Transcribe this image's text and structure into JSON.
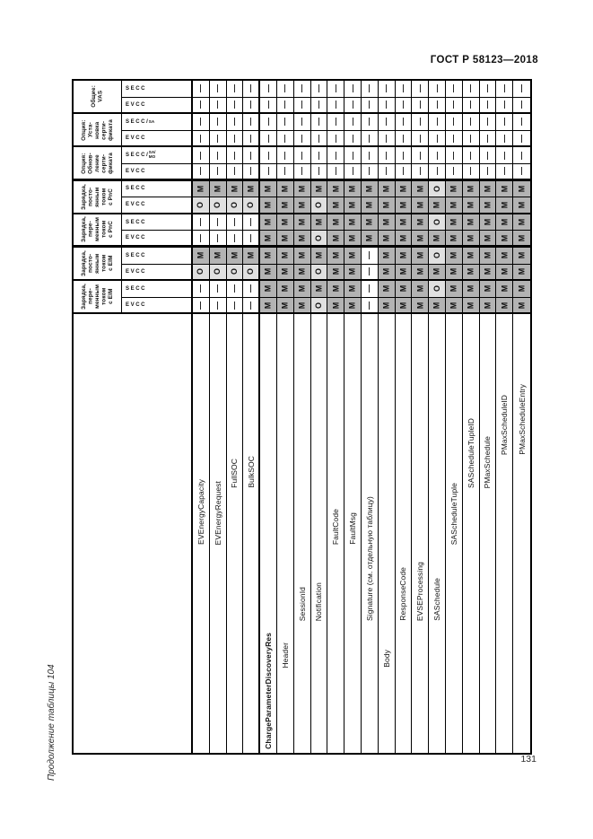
{
  "page": {
    "doc_ref": "ГОСТ Р 58123—2018",
    "side_caption": "Продолжение таблицы 104",
    "page_number": "131"
  },
  "table": {
    "legend": {
      "mandatory": "М",
      "optional": "О",
      "not_applicable": "—"
    },
    "colors": {
      "mandatory_bg": "#b3b3b3",
      "optional_bg": "#e0e0e0",
      "na_bg": "#ffffff",
      "border": "#000000"
    },
    "column_groups": [
      {
        "label": "Общие:\nVAS",
        "subs": [
          "SECC",
          "EVCC"
        ]
      },
      {
        "label": "Опция:\nУста-\nновка\nсерти-\nфиката",
        "subs": [
          "SECC/SA",
          "EVCC"
        ]
      },
      {
        "label": "Опция:\nОбнов-\nление\nсерти-\nфиката",
        "subs": [
          "SECC/SA/МО",
          "EVCC"
        ]
      },
      {
        "label": "Зарядка,\nпосто-\nянным\nтоком\nс PnC",
        "subs": [
          "SECC",
          "EVCC"
        ]
      },
      {
        "label": "Зарядка,\nпере-\nменным\nтоком\nс PnC",
        "subs": [
          "SECC",
          "EVCC"
        ]
      },
      {
        "label": "Зарядка,\nпосто-\nянным\nтоком\nс EIM",
        "subs": [
          "SECC",
          "EVCC"
        ]
      },
      {
        "label": "Зарядка,\nпере-\nменным\nтоком\nс EIM",
        "subs": [
          "SECC",
          "EVCC"
        ]
      }
    ],
    "rows": [
      {
        "name": "EVEnergyCapacity",
        "indent": 3,
        "bold": false
      },
      {
        "name": "EVEnergyRequest",
        "indent": 3,
        "bold": false
      },
      {
        "name": "FullSOC",
        "indent": 4,
        "bold": false
      },
      {
        "name": "BulkSOC",
        "indent": 4,
        "bold": false
      },
      {
        "name": "ChargeParameterDiscoveryRes",
        "indent": 0,
        "bold": true,
        "thick_before": true
      },
      {
        "name": "Header",
        "indent": 1,
        "bold": false
      },
      {
        "name": "SessionId",
        "indent": 2,
        "bold": false
      },
      {
        "name": "Notification",
        "indent": 2,
        "bold": false
      },
      {
        "name": "FaultCode",
        "indent": 3,
        "bold": false
      },
      {
        "name": "FaultMsg",
        "indent": 3,
        "bold": false
      },
      {
        "name": "Signature (см. отдельную таблицу)",
        "indent": 2,
        "bold": false
      },
      {
        "name": "Body",
        "indent": 1,
        "bold": false
      },
      {
        "name": "ResponseCode",
        "indent": 2,
        "bold": false
      },
      {
        "name": "EVSEProcessing",
        "indent": 2,
        "bold": false
      },
      {
        "name": "SASchedule",
        "indent": 2,
        "bold": false
      },
      {
        "name": "SAScheduleTuple",
        "indent": 3,
        "bold": false
      },
      {
        "name": "SAScheduleTupleID",
        "indent": 4,
        "bold": false
      },
      {
        "name": "PMaxSchedule",
        "indent": 4,
        "bold": false
      },
      {
        "name": "PMaxScheduleID",
        "indent": 5,
        "bold": false
      },
      {
        "name": "PMaxScheduleEntry",
        "indent": 5,
        "bold": false
      }
    ],
    "values": [
      [
        "—",
        "—",
        "—",
        "—",
        "—",
        "—",
        "—",
        "—",
        "—",
        "—",
        "—",
        "—",
        "—",
        "—",
        "—",
        "—",
        "—",
        "—",
        "—",
        "—"
      ],
      [
        "—",
        "—",
        "—",
        "—",
        "—",
        "—",
        "—",
        "—",
        "—",
        "—",
        "—",
        "—",
        "—",
        "—",
        "—",
        "—",
        "—",
        "—",
        "—",
        "—"
      ],
      [
        "—",
        "—",
        "—",
        "—",
        "—",
        "—",
        "—",
        "—",
        "—",
        "—",
        "—",
        "—",
        "—",
        "—",
        "—",
        "—",
        "—",
        "—",
        "—",
        "—"
      ],
      [
        "—",
        "—",
        "—",
        "—",
        "—",
        "—",
        "—",
        "—",
        "—",
        "—",
        "—",
        "—",
        "—",
        "—",
        "—",
        "—",
        "—",
        "—",
        "—",
        "—"
      ],
      [
        "—",
        "—",
        "—",
        "—",
        "—",
        "—",
        "—",
        "—",
        "—",
        "—",
        "—",
        "—",
        "—",
        "—",
        "—",
        "—",
        "—",
        "—",
        "—",
        "—"
      ],
      [
        "—",
        "—",
        "—",
        "—",
        "—",
        "—",
        "—",
        "—",
        "—",
        "—",
        "—",
        "—",
        "—",
        "—",
        "—",
        "—",
        "—",
        "—",
        "—",
        "—"
      ],
      [
        "М",
        "М",
        "М",
        "М",
        "М",
        "М",
        "М",
        "М",
        "М",
        "М",
        "М",
        "М",
        "М",
        "М",
        "О",
        "М",
        "М",
        "М",
        "М",
        "М"
      ],
      [
        "О",
        "О",
        "О",
        "О",
        "М",
        "М",
        "М",
        "О",
        "М",
        "М",
        "М",
        "М",
        "М",
        "М",
        "М",
        "М",
        "М",
        "М",
        "М",
        "М"
      ],
      [
        "—",
        "—",
        "—",
        "—",
        "М",
        "М",
        "М",
        "М",
        "М",
        "М",
        "М",
        "М",
        "М",
        "М",
        "О",
        "М",
        "М",
        "М",
        "М",
        "М"
      ],
      [
        "—",
        "—",
        "—",
        "—",
        "М",
        "М",
        "М",
        "О",
        "М",
        "М",
        "М",
        "М",
        "М",
        "М",
        "М",
        "М",
        "М",
        "М",
        "М",
        "М"
      ],
      [
        "М",
        "М",
        "М",
        "М",
        "М",
        "М",
        "М",
        "М",
        "М",
        "М",
        "—",
        "М",
        "М",
        "М",
        "О",
        "М",
        "М",
        "М",
        "М",
        "М"
      ],
      [
        "О",
        "О",
        "О",
        "О",
        "М",
        "М",
        "М",
        "О",
        "М",
        "М",
        "—",
        "М",
        "М",
        "М",
        "М",
        "М",
        "М",
        "М",
        "М",
        "М"
      ],
      [
        "—",
        "—",
        "—",
        "—",
        "М",
        "М",
        "М",
        "М",
        "М",
        "М",
        "—",
        "М",
        "М",
        "М",
        "О",
        "М",
        "М",
        "М",
        "М",
        "М"
      ],
      [
        "—",
        "—",
        "—",
        "—",
        "М",
        "М",
        "М",
        "О",
        "М",
        "М",
        "—",
        "М",
        "М",
        "М",
        "М",
        "М",
        "М",
        "М",
        "М",
        "М"
      ]
    ]
  }
}
